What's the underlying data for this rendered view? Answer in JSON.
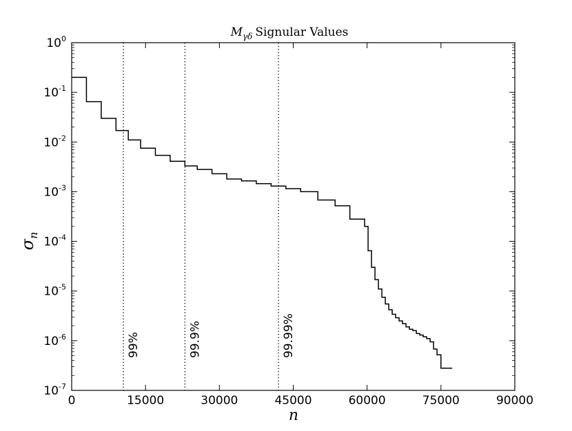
{
  "chart_data": {
    "type": "line",
    "step": true,
    "title": {
      "symbol": "M",
      "subscript": "γδ",
      "text": "Signular Values"
    },
    "xlabel": "n",
    "ylabel": {
      "symbol": "σ",
      "subscript": "n"
    },
    "xlim": [
      0,
      90000
    ],
    "ylim": [
      1e-07,
      1
    ],
    "yscale": "log",
    "xticks": [
      0,
      15000,
      30000,
      45000,
      60000,
      75000,
      90000
    ],
    "xtick_labels": [
      "0",
      "15000",
      "30000",
      "45000",
      "60000",
      "75000",
      "90000"
    ],
    "yticks": [
      {
        "base": "10",
        "exp": "0"
      },
      {
        "base": "10",
        "exp": "-1"
      },
      {
        "base": "10",
        "exp": "-2"
      },
      {
        "base": "10",
        "exp": "-3"
      },
      {
        "base": "10",
        "exp": "-4"
      },
      {
        "base": "10",
        "exp": "-5"
      },
      {
        "base": "10",
        "exp": "-6"
      },
      {
        "base": "10",
        "exp": "-7"
      }
    ],
    "ytick_values": [
      1,
      0.1,
      0.01,
      0.001,
      0.0001,
      1e-05,
      1e-06,
      1e-07
    ],
    "grid": false,
    "line_color": "#000000",
    "series": [
      {
        "x": [
          0,
          3000,
          6000,
          9000,
          11500,
          14000,
          17000,
          20000,
          23000,
          25500,
          28500,
          31500,
          34500,
          37500,
          40500,
          43500,
          46500,
          50000,
          53500,
          56500,
          59500,
          60200,
          60900,
          61600,
          62300,
          63000,
          63700,
          64400,
          65100,
          65800,
          66500,
          67200,
          67900,
          68600,
          69300,
          70000,
          70700,
          71400,
          72100,
          72800,
          73500,
          74200,
          75000,
          75700,
          76400,
          77300
        ],
        "y": [
          0.2,
          0.065,
          0.03,
          0.017,
          0.011,
          0.0075,
          0.0054,
          0.0041,
          0.0033,
          0.0028,
          0.0023,
          0.0018,
          0.00165,
          0.00145,
          0.0013,
          0.00115,
          0.001,
          0.00068,
          0.00052,
          0.00028,
          0.0002,
          6.5e-05,
          3e-05,
          1.7e-05,
          1.1e-05,
          7.5e-06,
          5.5e-06,
          4.2e-06,
          3.4e-06,
          2.9e-06,
          2.5e-06,
          2.2e-06,
          1.9e-06,
          1.7e-06,
          1.6e-06,
          1.4e-06,
          1.3e-06,
          1.2e-06,
          1.1e-06,
          9.5e-07,
          6.8e-07,
          5.2e-07,
          2.8e-07,
          2.8e-07,
          2.8e-07,
          2.8e-07
        ]
      }
    ],
    "vlines": [
      {
        "x": 10500,
        "label": "99%"
      },
      {
        "x": 23000,
        "label": "99.9%"
      },
      {
        "x": 42000,
        "label": "99.99%"
      }
    ]
  }
}
